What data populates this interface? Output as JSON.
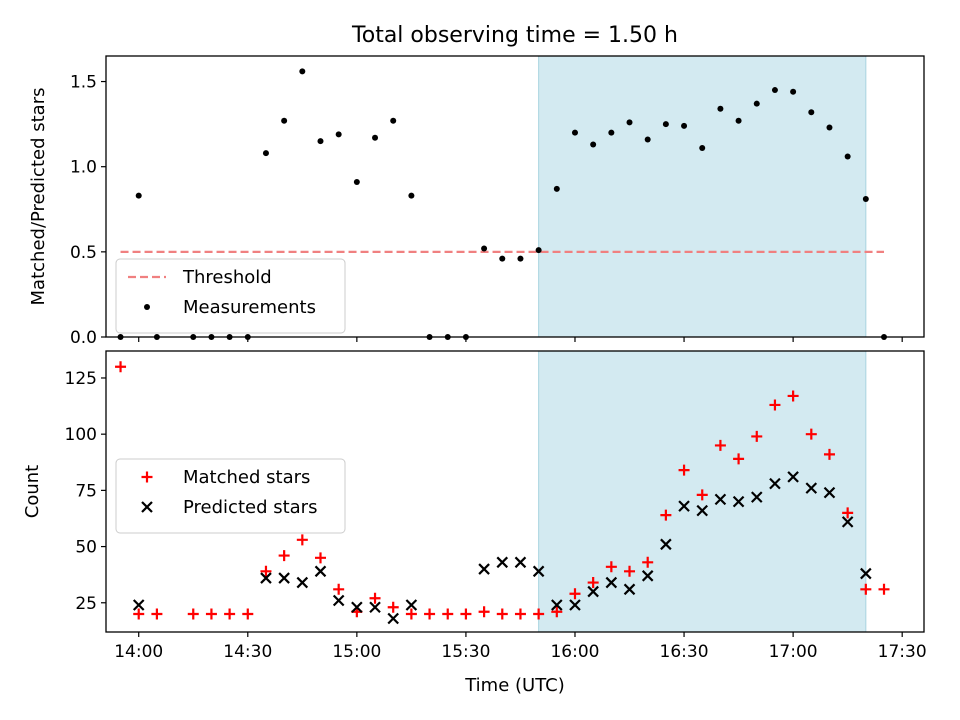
{
  "chart_data": [
    {
      "type": "scatter",
      "title": "Total observing time = 1.50 h",
      "ylabel": "Matched/Predicted stars",
      "xlabel": "",
      "ylim": [
        0,
        1.65
      ],
      "yticks": [
        {
          "v": 0,
          "label": "0.0"
        },
        {
          "v": 0.5,
          "label": "0.5"
        },
        {
          "v": 1.0,
          "label": "1.0"
        },
        {
          "v": 1.5,
          "label": "1.5"
        }
      ],
      "xlim": [
        "13:51",
        "17:36"
      ],
      "highlight_span": [
        "15:50",
        "17:20"
      ],
      "highlight_color": "#d3eaf1",
      "legend_position": "lower-left",
      "threshold": {
        "name": "Threshold",
        "y": 0.5,
        "x": [
          "13:55",
          "17:25"
        ],
        "color": "#f08080",
        "style": "dashed"
      },
      "series": [
        {
          "name": "Measurements",
          "color": "#000000",
          "marker": "dot",
          "points": [
            [
              "13:55",
              0.0
            ],
            [
              "14:00",
              0.83
            ],
            [
              "14:05",
              0.0
            ],
            [
              "14:15",
              0.0
            ],
            [
              "14:20",
              0.0
            ],
            [
              "14:25",
              0.0
            ],
            [
              "14:30",
              0.0
            ],
            [
              "14:35",
              1.08
            ],
            [
              "14:40",
              1.27
            ],
            [
              "14:45",
              1.56
            ],
            [
              "14:50",
              1.15
            ],
            [
              "14:55",
              1.19
            ],
            [
              "15:00",
              0.91
            ],
            [
              "15:05",
              1.17
            ],
            [
              "15:10",
              1.27
            ],
            [
              "15:15",
              0.83
            ],
            [
              "15:20",
              0.0
            ],
            [
              "15:25",
              0.0
            ],
            [
              "15:30",
              0.0
            ],
            [
              "15:35",
              0.52
            ],
            [
              "15:40",
              0.46
            ],
            [
              "15:45",
              0.46
            ],
            [
              "15:50",
              0.51
            ],
            [
              "15:55",
              0.87
            ],
            [
              "16:00",
              1.2
            ],
            [
              "16:05",
              1.13
            ],
            [
              "16:10",
              1.2
            ],
            [
              "16:15",
              1.26
            ],
            [
              "16:20",
              1.16
            ],
            [
              "16:25",
              1.25
            ],
            [
              "16:30",
              1.24
            ],
            [
              "16:35",
              1.11
            ],
            [
              "16:40",
              1.34
            ],
            [
              "16:45",
              1.27
            ],
            [
              "16:50",
              1.37
            ],
            [
              "16:55",
              1.45
            ],
            [
              "17:00",
              1.44
            ],
            [
              "17:05",
              1.32
            ],
            [
              "17:10",
              1.23
            ],
            [
              "17:15",
              1.06
            ],
            [
              "17:20",
              0.81
            ],
            [
              "17:25",
              0.0
            ]
          ]
        }
      ]
    },
    {
      "type": "scatter",
      "title": "",
      "ylabel": "Count",
      "xlabel": "Time (UTC)",
      "ylim": [
        12,
        137
      ],
      "yticks": [
        {
          "v": 25,
          "label": "25"
        },
        {
          "v": 50,
          "label": "50"
        },
        {
          "v": 75,
          "label": "75"
        },
        {
          "v": 100,
          "label": "100"
        },
        {
          "v": 125,
          "label": "125"
        }
      ],
      "xlim": [
        "13:51",
        "17:36"
      ],
      "xticks": [
        "14:00",
        "14:30",
        "15:00",
        "15:30",
        "16:00",
        "16:30",
        "17:00",
        "17:30"
      ],
      "highlight_span": [
        "15:50",
        "17:20"
      ],
      "highlight_color": "#d3eaf1",
      "legend_position": "center-left",
      "series": [
        {
          "name": "Matched stars",
          "color": "#ff0000",
          "marker": "plus",
          "points": [
            [
              "13:55",
              130
            ],
            [
              "14:00",
              20
            ],
            [
              "14:05",
              20
            ],
            [
              "14:15",
              20
            ],
            [
              "14:20",
              20
            ],
            [
              "14:25",
              20
            ],
            [
              "14:30",
              20
            ],
            [
              "14:35",
              39
            ],
            [
              "14:40",
              46
            ],
            [
              "14:45",
              53
            ],
            [
              "14:50",
              45
            ],
            [
              "14:55",
              31
            ],
            [
              "15:00",
              21
            ],
            [
              "15:05",
              27
            ],
            [
              "15:10",
              23
            ],
            [
              "15:15",
              20
            ],
            [
              "15:20",
              20
            ],
            [
              "15:25",
              20
            ],
            [
              "15:30",
              20
            ],
            [
              "15:35",
              21
            ],
            [
              "15:40",
              20
            ],
            [
              "15:45",
              20
            ],
            [
              "15:50",
              20
            ],
            [
              "15:55",
              21
            ],
            [
              "16:00",
              29
            ],
            [
              "16:05",
              34
            ],
            [
              "16:10",
              41
            ],
            [
              "16:15",
              39
            ],
            [
              "16:20",
              43
            ],
            [
              "16:25",
              64
            ],
            [
              "16:30",
              84
            ],
            [
              "16:35",
              73
            ],
            [
              "16:40",
              95
            ],
            [
              "16:45",
              89
            ],
            [
              "16:50",
              99
            ],
            [
              "16:55",
              113
            ],
            [
              "17:00",
              117
            ],
            [
              "17:05",
              100
            ],
            [
              "17:10",
              91
            ],
            [
              "17:15",
              65
            ],
            [
              "17:20",
              31
            ],
            [
              "17:25",
              31
            ]
          ]
        },
        {
          "name": "Predicted stars",
          "color": "#000000",
          "marker": "x",
          "points": [
            [
              "14:00",
              24
            ],
            [
              "14:35",
              36
            ],
            [
              "14:40",
              36
            ],
            [
              "14:45",
              34
            ],
            [
              "14:50",
              39
            ],
            [
              "14:55",
              26
            ],
            [
              "15:00",
              23
            ],
            [
              "15:05",
              23
            ],
            [
              "15:10",
              18
            ],
            [
              "15:15",
              24
            ],
            [
              "15:35",
              40
            ],
            [
              "15:40",
              43
            ],
            [
              "15:45",
              43
            ],
            [
              "15:50",
              39
            ],
            [
              "15:55",
              24
            ],
            [
              "16:00",
              24
            ],
            [
              "16:05",
              30
            ],
            [
              "16:10",
              34
            ],
            [
              "16:15",
              31
            ],
            [
              "16:20",
              37
            ],
            [
              "16:25",
              51
            ],
            [
              "16:30",
              68
            ],
            [
              "16:35",
              66
            ],
            [
              "16:40",
              71
            ],
            [
              "16:45",
              70
            ],
            [
              "16:50",
              72
            ],
            [
              "16:55",
              78
            ],
            [
              "17:00",
              81
            ],
            [
              "17:05",
              76
            ],
            [
              "17:10",
              74
            ],
            [
              "17:15",
              61
            ],
            [
              "17:20",
              38
            ]
          ]
        }
      ]
    }
  ]
}
